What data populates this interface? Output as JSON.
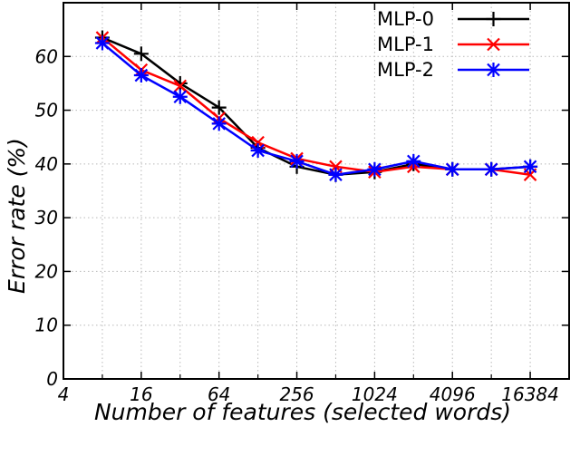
{
  "chart_data": {
    "type": "line",
    "title": "",
    "xlabel": "Number of features (selected words)",
    "ylabel": "Error rate (%)",
    "x": [
      8,
      16,
      32,
      64,
      128,
      256,
      512,
      1024,
      2048,
      4096,
      8192,
      16384
    ],
    "x_scale": "log2",
    "xlim": [
      4,
      32768
    ],
    "ylim": [
      0,
      70
    ],
    "x_ticks": [
      4,
      16,
      64,
      256,
      1024,
      4096,
      16384
    ],
    "x_tick_labels": [
      "4",
      "16",
      "64",
      "256",
      "1024",
      "4096",
      "16384"
    ],
    "y_ticks": [
      0,
      10,
      20,
      30,
      40,
      50,
      60
    ],
    "y_tick_labels": [
      "0",
      "10",
      "20",
      "30",
      "40",
      "50",
      "60"
    ],
    "grid": true,
    "legend_position": "top-right",
    "series": [
      {
        "name": "MLP-0",
        "color": "#000000",
        "marker": "plus",
        "values": [
          63.5,
          60.5,
          55.0,
          50.5,
          43.0,
          39.5,
          38.0,
          38.5,
          40.0,
          39.0,
          39.0,
          39.5
        ]
      },
      {
        "name": "MLP-1",
        "color": "#ff0000",
        "marker": "cross",
        "values": [
          63.5,
          57.5,
          54.5,
          48.5,
          44.0,
          41.0,
          39.5,
          38.5,
          39.5,
          39.0,
          39.0,
          38.0
        ]
      },
      {
        "name": "MLP-2",
        "color": "#0000ff",
        "marker": "star",
        "values": [
          62.5,
          56.5,
          52.5,
          47.5,
          42.5,
          40.5,
          38.0,
          39.0,
          40.5,
          39.0,
          39.0,
          39.5
        ]
      }
    ]
  }
}
